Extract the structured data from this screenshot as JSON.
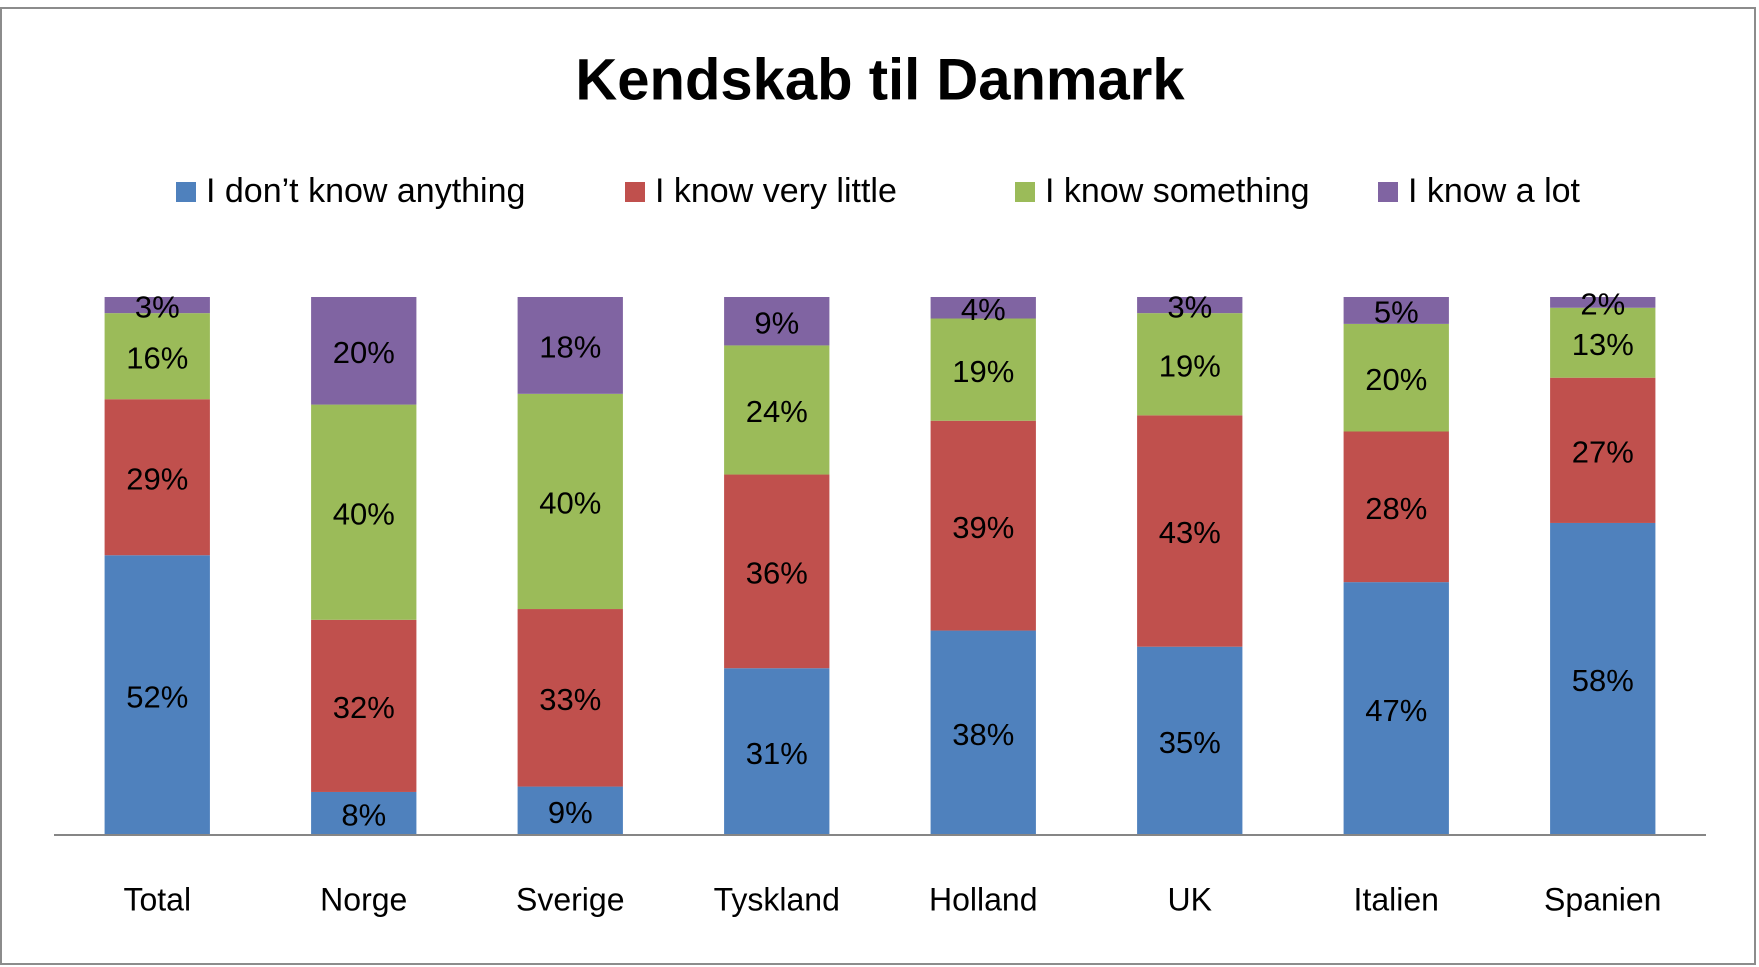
{
  "chart_data": {
    "type": "stacked_bar",
    "title": "Kendskab til Danmark",
    "categories": [
      "Total",
      "Norge",
      "Sverige",
      "Tyskland",
      "Holland",
      "UK",
      "Italien",
      "Spanien"
    ],
    "series": [
      {
        "name": "I don’t know anything",
        "color": "#4f81bd",
        "values": [
          52,
          8,
          9,
          31,
          38,
          35,
          47,
          58
        ],
        "value_labels": [
          "52%",
          "8%",
          "9%",
          "31%",
          "38%",
          "35%",
          "47%",
          "58%"
        ]
      },
      {
        "name": "I know very little",
        "color": "#c0504d",
        "values": [
          29,
          32,
          33,
          36,
          39,
          43,
          28,
          27
        ],
        "value_labels": [
          "29%",
          "32%",
          "33%",
          "36%",
          "39%",
          "43%",
          "28%",
          "27%"
        ]
      },
      {
        "name": "I know something",
        "color": "#9bbb59",
        "values": [
          16,
          40,
          40,
          24,
          19,
          19,
          20,
          13
        ],
        "value_labels": [
          "16%",
          "40%",
          "40%",
          "24%",
          "19%",
          "19%",
          "20%",
          "13%"
        ]
      },
      {
        "name": "I know a lot",
        "color": "#8064a2",
        "values": [
          3,
          20,
          18,
          9,
          4,
          3,
          5,
          2
        ],
        "value_labels": [
          "3%",
          "20%",
          "18%",
          "9%",
          "4%",
          "3%",
          "5%",
          "2%"
        ]
      }
    ],
    "ylim": [
      0,
      100
    ],
    "legend": "top"
  }
}
